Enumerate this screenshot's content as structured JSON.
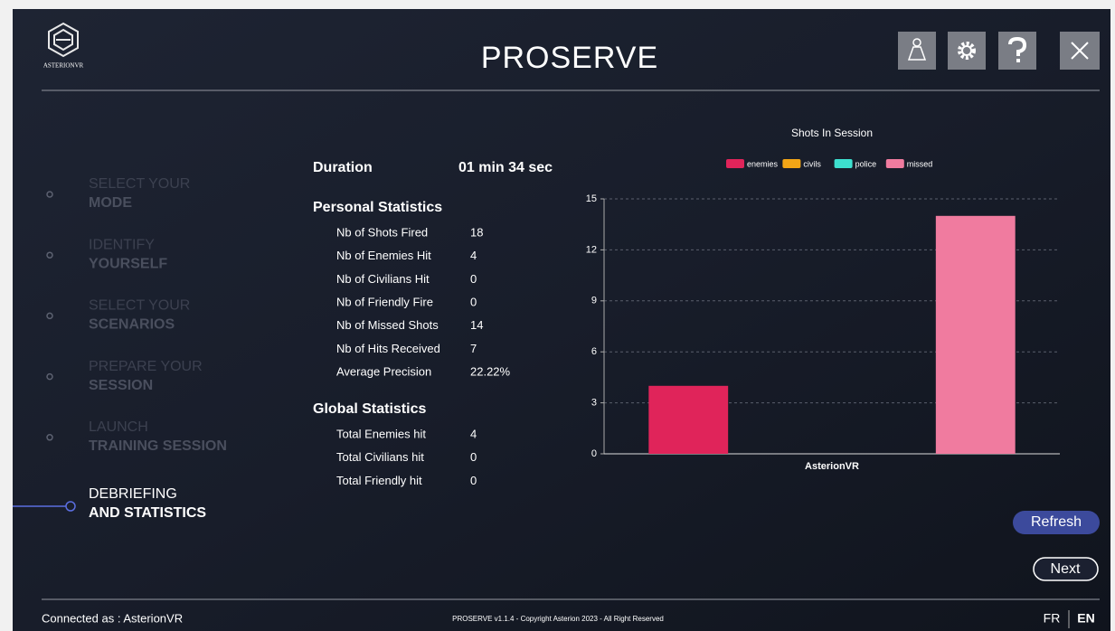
{
  "header": {
    "logo_text": "ASTERIONVR",
    "title": "PROSERVE"
  },
  "steps": [
    {
      "line1": "SELECT YOUR",
      "line2": "MODE"
    },
    {
      "line1": "IDENTIFY",
      "line2": "YOURSELF"
    },
    {
      "line1": "SELECT YOUR",
      "line2": "SCENARIOS"
    },
    {
      "line1": "PREPARE YOUR",
      "line2": "SESSION"
    },
    {
      "line1": "LAUNCH",
      "line2": "TRAINING SESSION"
    },
    {
      "line1": "DEBRIEFING",
      "line2": "AND STATISTICS"
    }
  ],
  "stats": {
    "duration": {
      "label": "Duration",
      "value": "01 min 34 sec"
    },
    "personal": {
      "title": "Personal Statistics",
      "rows": [
        [
          "Nb of Shots Fired",
          "18"
        ],
        [
          "Nb of Enemies Hit",
          "4"
        ],
        [
          "Nb of Civilians Hit",
          "0"
        ],
        [
          "Nb of Friendly Fire",
          "0"
        ],
        [
          "Nb of Missed Shots",
          "14"
        ],
        [
          "Nb of Hits Received",
          "7"
        ],
        [
          "Average Precision",
          "22.22%"
        ]
      ]
    },
    "global": {
      "title": "Global Statistics",
      "rows": [
        [
          "Total Enemies hit",
          "4"
        ],
        [
          "Total Civilians hit",
          "0"
        ],
        [
          "Total Friendly hit",
          "0"
        ]
      ]
    }
  },
  "chart_data": {
    "type": "bar",
    "title": "Shots In Session",
    "categories": [
      "AsterionVR"
    ],
    "series": [
      {
        "name": "enemies",
        "color": "#e0245a",
        "values": [
          4
        ]
      },
      {
        "name": "civils",
        "color": "#f2a516",
        "values": [
          0
        ]
      },
      {
        "name": "police",
        "color": "#3de0cf",
        "values": [
          0
        ]
      },
      {
        "name": "missed",
        "color": "#f07b9f",
        "values": [
          14
        ]
      }
    ],
    "ylim": [
      0,
      15
    ],
    "yticks": [
      0,
      3,
      6,
      9,
      12,
      15
    ],
    "grid": true,
    "legend": "top"
  },
  "buttons": {
    "refresh": "Refresh",
    "next": "Next"
  },
  "footer": {
    "connected": "Connected as : AsterionVR",
    "copyright": "PROSERVE v1.1.4 - Copyright Asterion 2023 - All Right Reserved",
    "languages": [
      "FR",
      "EN"
    ]
  }
}
